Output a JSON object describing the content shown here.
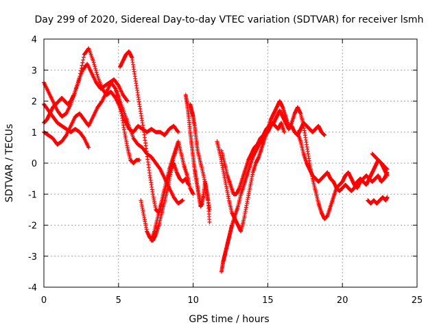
{
  "chart_data": {
    "type": "scatter",
    "title": "Day 299 of 2020, Sidereal Day-to-day VTEC variation (SDTVAR) for receiver lsmh",
    "xlabel": "GPS time / hours",
    "ylabel": "SDTVAR / TECUs",
    "xlim": [
      0,
      25
    ],
    "ylim": [
      -4,
      4
    ],
    "x_ticks": [
      0,
      5,
      10,
      15,
      20,
      25
    ],
    "y_ticks": [
      -4,
      -3,
      -2,
      -1,
      0,
      1,
      2,
      3,
      4
    ],
    "grid": true,
    "marker": "plus",
    "color": "#ff0000",
    "series": [
      {
        "x": [
          0.0,
          0.3,
          0.6,
          0.9,
          1.2,
          1.5,
          1.8,
          2.1,
          2.4,
          2.7,
          3.0,
          3.3,
          3.6,
          3.9,
          4.2,
          4.5,
          4.8,
          5.1,
          5.4,
          5.7,
          6.0,
          6.3,
          6.6,
          6.9,
          7.2,
          7.5,
          7.8,
          8.1,
          8.4,
          8.7,
          9.0
        ],
        "y": [
          2.6,
          2.3,
          2.0,
          1.7,
          1.5,
          1.6,
          1.9,
          2.3,
          2.8,
          3.5,
          3.7,
          3.3,
          2.8,
          2.4,
          2.2,
          2.3,
          2.1,
          1.8,
          1.4,
          1.1,
          1.0,
          1.2,
          1.1,
          1.0,
          1.1,
          1.0,
          1.0,
          0.9,
          1.1,
          1.2,
          1.0
        ]
      },
      {
        "x": [
          0.0,
          0.2,
          0.4,
          0.6,
          0.8,
          1.0,
          1.2,
          1.4,
          1.6,
          1.8,
          2.0,
          2.3,
          2.6,
          2.9,
          3.2,
          3.5,
          3.8,
          4.1,
          4.4,
          4.7,
          5.0,
          5.3,
          5.6
        ],
        "y": [
          1.3,
          1.4,
          1.6,
          1.8,
          1.9,
          2.0,
          2.1,
          2.0,
          1.9,
          2.0,
          2.2,
          2.6,
          3.0,
          3.2,
          2.9,
          2.6,
          2.4,
          2.5,
          2.6,
          2.7,
          2.5,
          2.2,
          2.0
        ]
      },
      {
        "x": [
          0.0,
          0.3,
          0.6,
          0.9,
          1.2,
          1.5,
          1.8,
          2.1,
          2.4,
          2.7,
          3.0,
          3.3,
          3.6,
          3.9,
          4.2,
          4.5,
          4.8,
          5.1,
          5.4,
          5.7,
          6.0,
          6.3,
          6.6,
          6.9,
          7.2,
          7.5,
          7.8,
          8.1,
          8.4,
          8.7,
          9.0,
          9.3
        ],
        "y": [
          1.0,
          0.9,
          0.8,
          0.6,
          0.7,
          0.9,
          1.2,
          1.5,
          1.6,
          1.4,
          1.2,
          1.5,
          1.8,
          2.0,
          2.3,
          2.6,
          2.4,
          2.0,
          1.6,
          1.2,
          0.8,
          0.6,
          0.5,
          0.3,
          0.2,
          0.0,
          -0.2,
          -0.5,
          -0.8,
          -1.1,
          -1.3,
          -1.2
        ]
      },
      {
        "x": [
          0.0,
          0.3,
          0.6,
          0.9,
          1.2,
          1.5,
          1.8,
          2.1,
          2.4,
          2.7,
          3.0
        ],
        "y": [
          1.9,
          1.7,
          1.5,
          1.3,
          1.2,
          1.1,
          1.0,
          1.1,
          1.0,
          0.8,
          0.5
        ]
      },
      {
        "x": [
          4.8,
          5.0,
          5.2,
          5.4,
          5.6,
          5.8,
          6.0,
          6.2,
          6.4
        ],
        "y": [
          2.4,
          2.1,
          1.6,
          1.0,
          0.5,
          0.1,
          0.0,
          0.1,
          0.1
        ]
      },
      {
        "x": [
          5.1,
          5.3,
          5.5,
          5.7,
          5.9,
          6.1,
          6.3,
          6.5,
          6.7,
          6.9,
          7.1,
          7.3,
          7.5,
          7.7,
          7.9,
          8.1,
          8.3,
          8.5,
          8.7,
          8.9,
          9.1,
          9.3,
          9.5,
          9.7
        ],
        "y": [
          3.1,
          3.3,
          3.5,
          3.6,
          3.4,
          2.8,
          2.2,
          1.6,
          1.0,
          0.3,
          -0.4,
          -1.0,
          -1.5,
          -1.6,
          -1.3,
          -0.9,
          -0.5,
          -0.2,
          0.0,
          -0.3,
          -0.5,
          -0.6,
          -0.5,
          -0.7
        ]
      },
      {
        "x": [
          6.5,
          6.7,
          6.9,
          7.1,
          7.3,
          7.5,
          7.7,
          7.9,
          8.1,
          8.3,
          8.5,
          8.7,
          9.0
        ],
        "y": [
          -1.2,
          -1.7,
          -2.2,
          -2.4,
          -2.5,
          -2.3,
          -2.0,
          -1.6,
          -1.2,
          -0.8,
          -0.3,
          0.2,
          0.6
        ]
      },
      {
        "x": [
          7.2,
          7.4,
          7.6,
          7.8,
          8.0,
          8.2,
          8.4,
          8.6,
          8.8,
          9.0,
          9.2,
          9.4,
          9.6,
          9.8,
          10.0
        ],
        "y": [
          -2.5,
          -2.2,
          -1.8,
          -1.4,
          -1.0,
          -0.6,
          -0.2,
          0.1,
          0.4,
          0.7,
          0.3,
          -0.1,
          -0.4,
          -0.8,
          -1.0
        ]
      },
      {
        "x": [
          9.5,
          9.6,
          9.7,
          9.8,
          9.9,
          10.0,
          10.1,
          10.2,
          10.3,
          10.4,
          10.5,
          10.6,
          10.7,
          10.8,
          10.9,
          11.0,
          11.1
        ],
        "y": [
          2.2,
          1.9,
          1.5,
          1.0,
          0.6,
          0.2,
          -0.2,
          -0.5,
          -0.8,
          -1.1,
          -1.4,
          -1.3,
          -1.0,
          -0.6,
          -0.9,
          -1.2,
          -1.9
        ]
      },
      {
        "x": [
          9.8,
          9.9,
          10.0,
          10.1,
          10.2,
          10.3,
          10.5,
          10.7,
          10.9,
          11.1
        ],
        "y": [
          1.9,
          1.7,
          1.5,
          1.2,
          0.8,
          0.4,
          0.0,
          -0.4,
          -0.9,
          -1.5
        ]
      },
      {
        "x": [
          11.9,
          12.0,
          12.1,
          12.2,
          12.3,
          12.4,
          12.5,
          12.6,
          12.8,
          13.0,
          13.2,
          13.4,
          13.6,
          13.8,
          14.0,
          14.2,
          14.4,
          14.6,
          14.8,
          15.0,
          15.2,
          15.4,
          15.6,
          15.8,
          16.0,
          16.2,
          16.4,
          16.6,
          16.8,
          17.0,
          17.2,
          17.4,
          17.6,
          17.8,
          18.0,
          18.2,
          18.4,
          18.6,
          18.8
        ],
        "y": [
          -3.5,
          -3.2,
          -3.0,
          -2.8,
          -2.6,
          -2.4,
          -2.2,
          -2.0,
          -1.7,
          -1.4,
          -1.0,
          -0.7,
          -0.4,
          -0.1,
          0.2,
          0.4,
          0.6,
          0.7,
          0.9,
          1.0,
          1.2,
          1.3,
          1.5,
          1.7,
          1.5,
          1.3,
          1.1,
          1.2,
          1.0,
          0.9,
          1.1,
          1.3,
          1.2,
          1.1,
          1.0,
          1.1,
          1.2,
          1.0,
          0.9
        ]
      },
      {
        "x": [
          11.6,
          11.8,
          12.0,
          12.2,
          12.4,
          12.6,
          12.8,
          13.0,
          13.2,
          13.4,
          13.6,
          13.8,
          14.0,
          14.2,
          14.4,
          14.6,
          14.8,
          15.0,
          15.2,
          15.4,
          15.6,
          15.8,
          16.0,
          16.2,
          16.4
        ],
        "y": [
          0.7,
          0.3,
          -0.2,
          -0.7,
          -1.2,
          -1.6,
          -1.8,
          -2.0,
          -2.2,
          -1.8,
          -1.3,
          -0.8,
          -0.3,
          0.0,
          0.2,
          0.5,
          0.8,
          1.1,
          1.4,
          1.6,
          1.8,
          2.0,
          1.8,
          1.5,
          1.2
        ]
      },
      {
        "x": [
          11.9,
          12.1,
          12.3,
          12.5,
          12.7,
          12.9,
          13.1,
          13.3,
          13.5,
          13.7,
          13.9,
          14.1,
          14.3,
          14.5,
          14.7,
          14.9,
          15.1,
          15.3,
          15.5,
          15.7,
          15.9,
          16.1
        ],
        "y": [
          0.4,
          0.0,
          -0.4,
          -0.7,
          -1.0,
          -1.0,
          -0.8,
          -0.5,
          -0.2,
          0.1,
          0.3,
          0.5,
          0.6,
          0.8,
          0.9,
          1.1,
          1.2,
          1.3,
          1.2,
          1.1,
          1.3,
          1.0
        ]
      },
      {
        "x": [
          16.4,
          16.6,
          16.8,
          17.0,
          17.2,
          17.4,
          17.6,
          17.8,
          18.0,
          18.2,
          18.4,
          18.6,
          18.8,
          19.0,
          19.2,
          19.4,
          19.6,
          19.8,
          20.0,
          20.2,
          20.4,
          20.6,
          20.8,
          21.0,
          21.2,
          21.4,
          21.6,
          21.8,
          22.0,
          22.2,
          22.4,
          22.6,
          22.8,
          23.0
        ],
        "y": [
          1.1,
          1.3,
          1.6,
          1.8,
          1.6,
          1.2,
          0.6,
          0.0,
          -0.5,
          -0.9,
          -1.3,
          -1.6,
          -1.8,
          -1.7,
          -1.4,
          -1.1,
          -0.8,
          -0.7,
          -0.6,
          -0.4,
          -0.3,
          -0.5,
          -0.7,
          -0.8,
          -0.6,
          -0.5,
          -0.4,
          -0.5,
          -0.6,
          -0.5,
          -0.4,
          -0.6,
          -0.5,
          -0.3
        ]
      },
      {
        "x": [
          17.0,
          17.2,
          17.4,
          17.6,
          17.8,
          18.0,
          18.2,
          18.4,
          18.6,
          18.8,
          19.0,
          19.2,
          19.4,
          19.6,
          19.8,
          20.0,
          20.2,
          20.4,
          20.6,
          20.8,
          21.0,
          21.2,
          21.4,
          21.6,
          21.8,
          22.0,
          22.2,
          22.4,
          22.6,
          22.8,
          23.0
        ],
        "y": [
          1.0,
          0.7,
          0.3,
          0.0,
          -0.2,
          -0.4,
          -0.5,
          -0.6,
          -0.5,
          -0.4,
          -0.3,
          -0.5,
          -0.6,
          -0.8,
          -0.9,
          -0.8,
          -0.7,
          -0.8,
          -0.9,
          -0.8,
          -0.6,
          -0.5,
          -0.6,
          -0.7,
          -0.5,
          -0.3,
          -0.1,
          0.1,
          0.0,
          -0.2,
          -0.4
        ]
      },
      {
        "x": [
          21.7,
          21.9,
          22.1,
          22.3,
          22.5,
          22.7,
          22.9,
          23.0
        ],
        "y": [
          -1.2,
          -1.3,
          -1.2,
          -1.3,
          -1.2,
          -1.1,
          -1.2,
          -1.1
        ]
      },
      {
        "x": [
          22.0,
          22.2,
          22.4,
          22.6,
          22.8,
          23.0
        ],
        "y": [
          0.3,
          0.2,
          0.1,
          0.0,
          -0.1,
          -0.2
        ]
      }
    ]
  }
}
